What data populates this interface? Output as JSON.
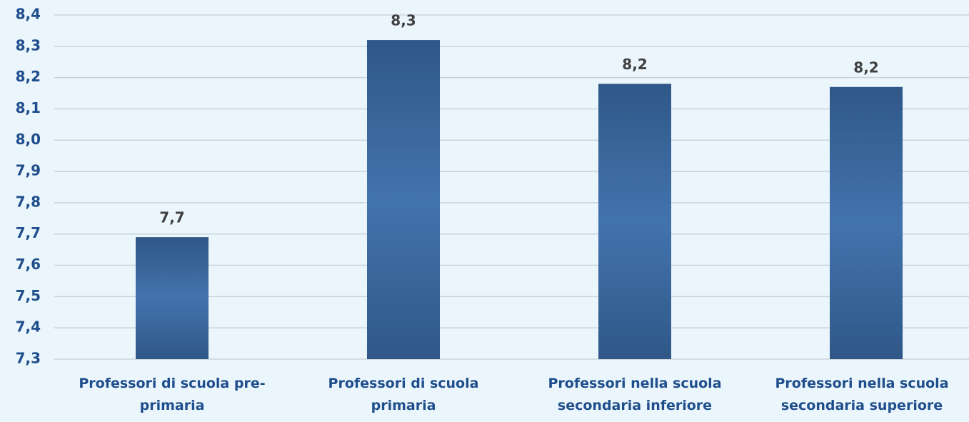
{
  "chart_data": {
    "type": "bar",
    "categories": [
      "Professori di scuola pre-primaria",
      "Professori di scuola primaria",
      "Professori nella scuola secondaria inferiore",
      "Professori nella scuola secondaria superiore"
    ],
    "values": [
      7.69,
      8.32,
      8.18,
      8.17
    ],
    "value_labels": [
      "7,7",
      "8,3",
      "8,2",
      "8,2"
    ],
    "color": "#4373ad",
    "ylim": [
      7.3,
      8.4
    ],
    "yticks": [
      {
        "value": 7.3,
        "label": "7,3"
      },
      {
        "value": 7.4,
        "label": "7,4"
      },
      {
        "value": 7.5,
        "label": "7,5"
      },
      {
        "value": 7.6,
        "label": "7,6"
      },
      {
        "value": 7.7,
        "label": "7,7"
      },
      {
        "value": 7.8,
        "label": "7,8"
      },
      {
        "value": 7.9,
        "label": "7,9"
      },
      {
        "value": 8.0,
        "label": "8,0"
      },
      {
        "value": 8.1,
        "label": "8,1"
      },
      {
        "value": 8.2,
        "label": "8,2"
      },
      {
        "value": 8.3,
        "label": "8,3"
      },
      {
        "value": 8.4,
        "label": "8,4"
      }
    ],
    "grid": true
  }
}
